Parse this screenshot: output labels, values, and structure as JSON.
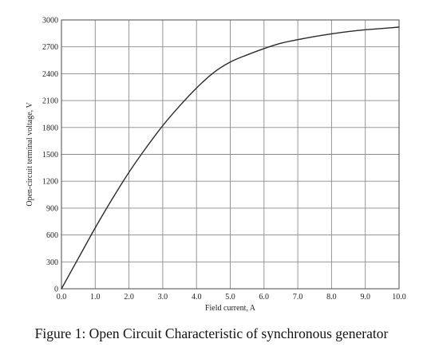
{
  "figure": {
    "caption": "Figure 1: Open Circuit Characteristic of synchronous generator"
  },
  "chart_data": {
    "type": "line",
    "title": "",
    "xlabel": "Field current, A",
    "ylabel": "Open-circuit terminal voltage, V",
    "xlim": [
      0,
      10
    ],
    "ylim": [
      0,
      3000
    ],
    "xticks": [
      "0.0",
      "1.0",
      "2.0",
      "3.0",
      "4.0",
      "5.0",
      "6.0",
      "7.0",
      "8.0",
      "9.0",
      "10.0"
    ],
    "yticks": [
      "0",
      "300",
      "600",
      "900",
      "1200",
      "1500",
      "1800",
      "2100",
      "2400",
      "2700",
      "3000"
    ],
    "grid": true,
    "legend": "none",
    "line_color": "#2b2b2b",
    "grid_color": "#8a8a8a",
    "series": [
      {
        "x": [
          0.0,
          0.5,
          1.0,
          1.5,
          2.0,
          2.5,
          3.0,
          3.5,
          4.0,
          4.5,
          5.0,
          5.5,
          6.0,
          6.5,
          7.0,
          7.5,
          8.0,
          8.5,
          9.0,
          9.5,
          10.0
        ],
        "y": [
          0,
          340,
          680,
          1000,
          1300,
          1570,
          1820,
          2040,
          2240,
          2410,
          2530,
          2610,
          2680,
          2740,
          2780,
          2815,
          2845,
          2870,
          2890,
          2905,
          2920
        ]
      }
    ]
  }
}
